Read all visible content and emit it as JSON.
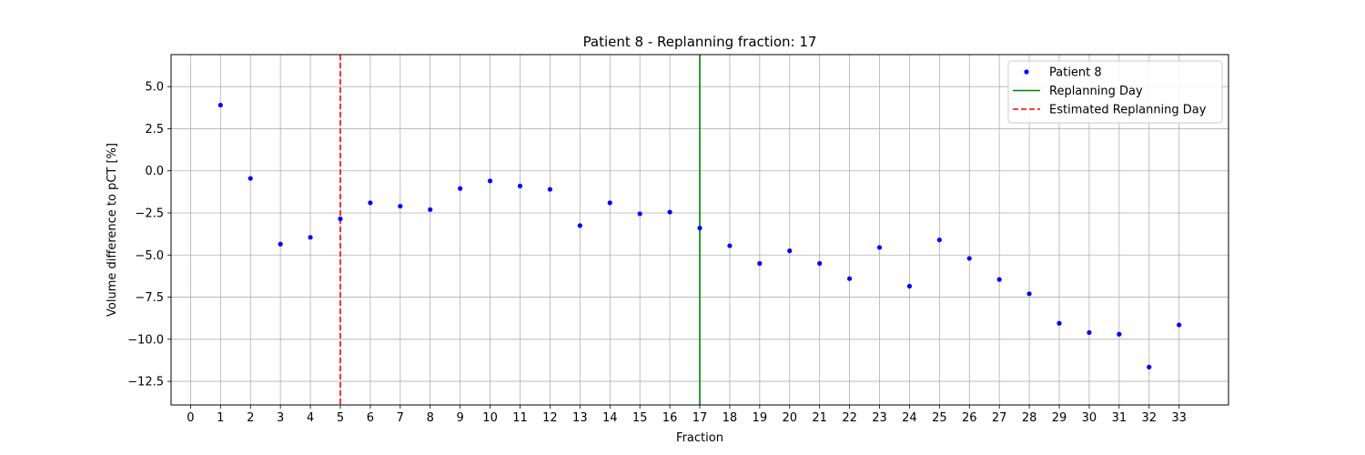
{
  "chart_data": {
    "type": "scatter",
    "title": "Patient 8 - Replanning fraction: 17",
    "xlabel": "Fraction",
    "ylabel": "Volume difference to pCT [%]",
    "xlim": [
      -0.65,
      34.65
    ],
    "ylim": [
      -13.9,
      6.9
    ],
    "x_ticks": [
      0,
      1,
      2,
      3,
      4,
      5,
      6,
      7,
      8,
      9,
      10,
      11,
      12,
      13,
      14,
      15,
      16,
      17,
      18,
      19,
      20,
      21,
      22,
      23,
      24,
      25,
      26,
      27,
      28,
      29,
      30,
      31,
      32,
      33
    ],
    "y_ticks": [
      5.0,
      2.5,
      0.0,
      -2.5,
      -5.0,
      -7.5,
      -10.0,
      -12.5
    ],
    "y_tick_labels": [
      "5.0",
      "2.5",
      "0.0",
      "−2.5",
      "−5.0",
      "−7.5",
      "−10.0",
      "−12.5"
    ],
    "grid": true,
    "legend_position": "top-right",
    "series": [
      {
        "name": "Patient 8",
        "color": "#0000ff",
        "marker": "dot",
        "x": [
          1,
          2,
          3,
          4,
          5,
          6,
          7,
          8,
          9,
          10,
          11,
          12,
          13,
          14,
          15,
          16,
          17,
          18,
          19,
          20,
          21,
          22,
          23,
          24,
          25,
          26,
          27,
          28,
          29,
          30,
          31,
          32,
          33
        ],
        "y": [
          3.9,
          -0.45,
          -4.35,
          -3.95,
          -2.85,
          -1.9,
          -2.1,
          -2.3,
          -1.05,
          -0.6,
          -0.9,
          -1.1,
          -3.25,
          -1.9,
          -2.55,
          -2.45,
          -3.4,
          -4.45,
          -5.5,
          -4.75,
          -5.5,
          -6.4,
          -4.55,
          -6.85,
          -4.1,
          -5.2,
          -6.45,
          -7.3,
          -9.05,
          -9.6,
          -9.7,
          -11.65,
          -9.15
        ]
      }
    ],
    "vertical_lines": [
      {
        "name": "Replanning Day",
        "x": 17,
        "color": "#008000",
        "style": "solid"
      },
      {
        "name": "Estimated Replanning Day",
        "x": 5,
        "color": "#ff0000",
        "style": "dashed"
      }
    ]
  }
}
